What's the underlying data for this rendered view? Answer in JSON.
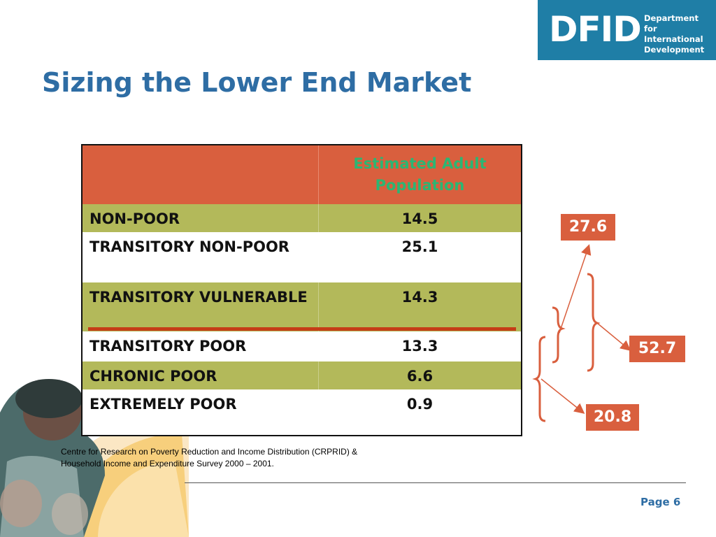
{
  "logo": {
    "acronym": "DFID",
    "line1": "Department for",
    "line2": "International",
    "line3": "Development"
  },
  "title": "Sizing the Lower End Market",
  "table": {
    "header": "Estimated Adult Population",
    "rows": [
      {
        "label": "NON-POOR",
        "value": "14.5"
      },
      {
        "label": "TRANSITORY NON-POOR",
        "value": "25.1"
      },
      {
        "label": "TRANSITORY VULNERABLE",
        "value": "14.3"
      },
      {
        "label": "TRANSITORY POOR",
        "value": "13.3"
      },
      {
        "label": "CHRONIC POOR",
        "value": "6.6"
      },
      {
        "label": "EXTREMELY POOR",
        "value": "0.9"
      }
    ]
  },
  "callouts": {
    "top": "27.6",
    "middle": "52.7",
    "bottom": "20.8"
  },
  "source": {
    "line1": "Centre for Research on Poverty Reduction and Income Distribution (CRPRID) &",
    "line2": "Household Income and Expenditure Survey 2000 – 2001."
  },
  "footer": {
    "page": "Page 6"
  },
  "colors": {
    "title": "#2e6da4",
    "header_bg": "#d95f3e",
    "header_text": "#2bb673",
    "olive_row": "#b3b95a",
    "accent_line": "#c53d17",
    "logo_bg": "#1f7ea6"
  }
}
